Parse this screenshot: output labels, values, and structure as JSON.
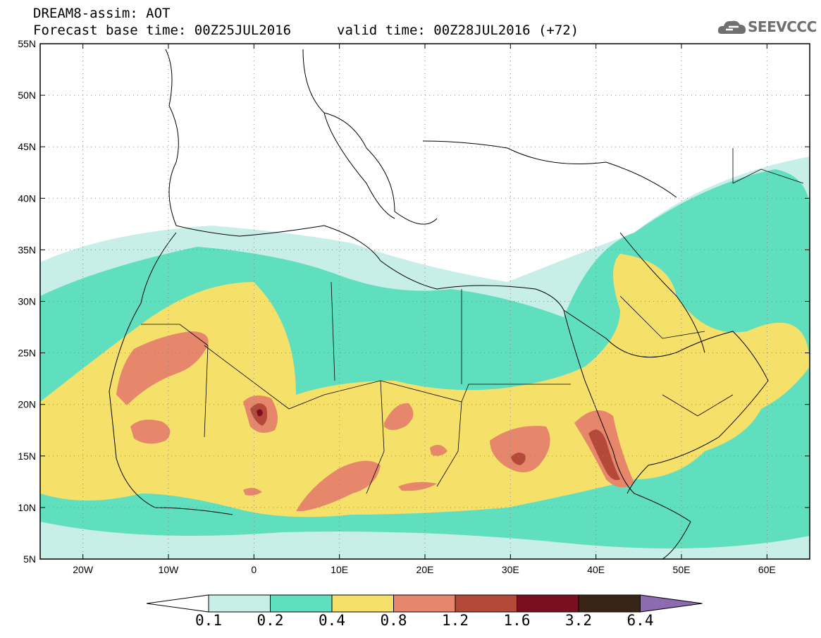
{
  "header": {
    "title": "DREAM8-assim: AOT",
    "forecast_line": "Forecast base time: 00Z25JUL2016",
    "valid_line": "valid time: 00Z28JUL2016 (+72)"
  },
  "logo": {
    "text": "SEEVCCC",
    "icon": "cloud-icon"
  },
  "map": {
    "lon_labels": [
      "20W",
      "10W",
      "0",
      "10E",
      "20E",
      "30E",
      "40E",
      "50E",
      "60E"
    ],
    "lat_labels": [
      "55N",
      "50N",
      "45N",
      "40N",
      "35N",
      "30N",
      "25N",
      "20N",
      "15N",
      "10N",
      "5N"
    ],
    "lon_range": [
      -25,
      65
    ],
    "lat_range": [
      5,
      55
    ],
    "grid": "dotted"
  },
  "colors": {
    "c01": "#c8eee8",
    "c02": "#5fdfbd",
    "c04": "#f5e06a",
    "c08": "#e6866a",
    "c12": "#b4493a",
    "c16": "#7a0f22",
    "c32": "#3a2418",
    "c64": "#8e6bb0"
  },
  "colorbar": {
    "labels": [
      "0.1",
      "0.2",
      "0.4",
      "0.8",
      "1.2",
      "1.6",
      "3.2",
      "6.4"
    ]
  }
}
